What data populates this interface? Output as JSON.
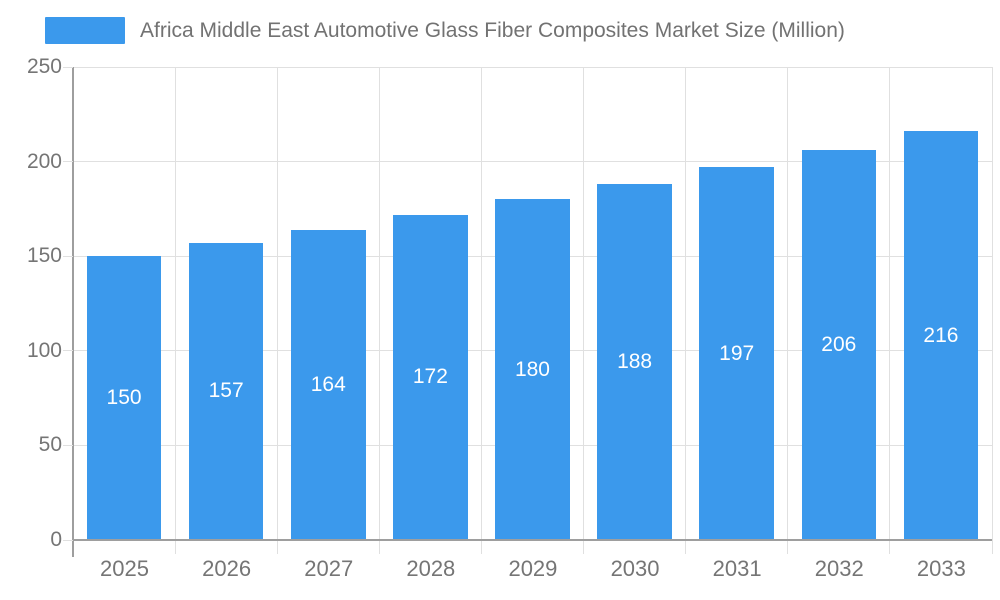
{
  "chart_data": {
    "type": "bar",
    "title": "Africa Middle East Automotive Glass Fiber Composites Market Size (Million)",
    "categories": [
      "2025",
      "2026",
      "2027",
      "2028",
      "2029",
      "2030",
      "2031",
      "2032",
      "2033"
    ],
    "values": [
      150,
      157,
      164,
      172,
      180,
      188,
      197,
      206,
      216
    ],
    "xlabel": "",
    "ylabel": "",
    "ylim": [
      0,
      250
    ],
    "yticks": [
      0,
      50,
      100,
      150,
      200,
      250
    ],
    "grid": "on",
    "legend_position": "top-left",
    "colors": {
      "bar": "#3b99ec",
      "value_label": "#ffffff",
      "grid_line": "#e0e0e0",
      "axis_line": "#9e9e9e",
      "tick_label": "#757575",
      "title_text": "#727272"
    }
  }
}
